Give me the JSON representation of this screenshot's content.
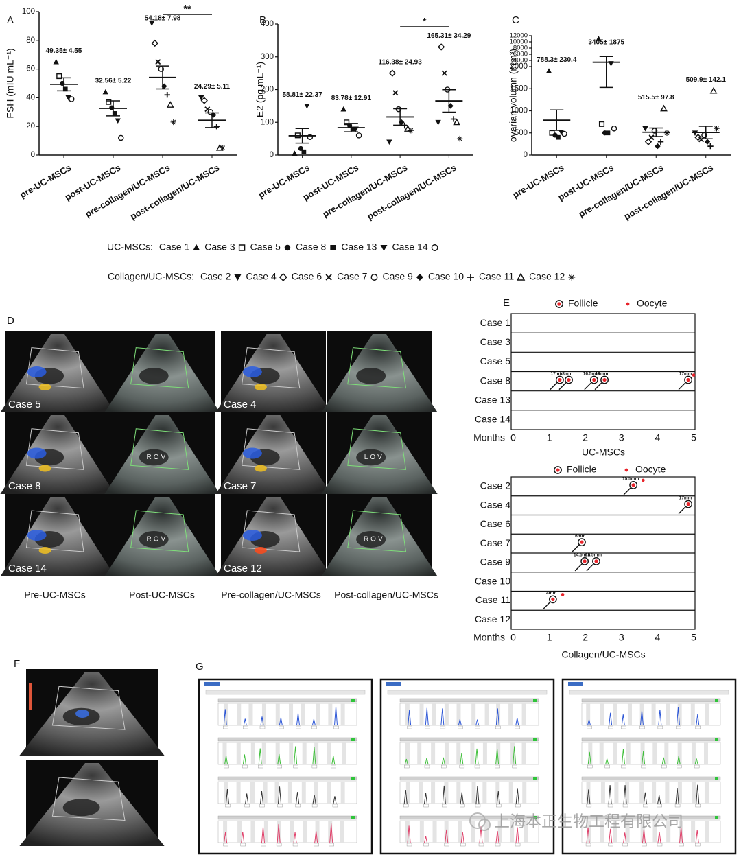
{
  "chart_data": [
    {
      "type": "dotplot",
      "panel": "A",
      "ylabel": "FSH (mIU mL⁻¹)",
      "categories": [
        "pre-UC-MSCs",
        "post-UC-MSCs",
        "pre-collagen/UC-MSCs",
        "post-collagen/UC-MSCs"
      ],
      "points": [
        [
          65,
          55,
          50,
          46,
          40,
          39
        ],
        [
          44,
          37,
          33,
          29,
          24,
          12
        ],
        [
          92,
          78,
          65,
          60,
          48,
          42,
          35,
          23
        ],
        [
          40,
          38,
          32,
          30,
          28,
          20,
          5,
          5
        ]
      ],
      "values": [
        49.35,
        32.56,
        54.18,
        24.29
      ],
      "errors": [
        4.55,
        5.22,
        7.98,
        5.11
      ],
      "value_labels": [
        "49.35± 4.55",
        "32.56± 5.22",
        "54.18± 7.98",
        "24.29± 5.11"
      ],
      "significance": "**",
      "ylim": [
        0,
        100
      ],
      "yticks": [
        0,
        20,
        40,
        60,
        80,
        100
      ]
    },
    {
      "type": "dotplot",
      "panel": "B",
      "ylabel": "E2 (pg mL⁻¹)",
      "categories": [
        "pre-UC-MSCs",
        "post-UC-MSCs",
        "pre-collagen/UC-MSCs",
        "post-collagen/UC-MSCs"
      ],
      "points": [
        [
          5,
          60,
          20,
          10,
          150,
          55
        ],
        [
          140,
          100,
          90,
          80,
          80,
          60
        ],
        [
          40,
          250,
          190,
          140,
          100,
          90,
          80,
          75
        ],
        [
          100,
          330,
          250,
          200,
          150,
          110,
          100,
          50
        ]
      ],
      "values": [
        58.81,
        83.78,
        116.38,
        165.31
      ],
      "errors": [
        22.37,
        12.91,
        24.93,
        34.29
      ],
      "value_labels": [
        "58.81± 22.37",
        "83.78± 12.91",
        "116.38± 24.93",
        "165.31± 34.29"
      ],
      "significance": "*",
      "ylim": [
        0,
        400
      ],
      "yticks": [
        0,
        100,
        200,
        300,
        400
      ]
    },
    {
      "type": "dotplot",
      "panel": "C",
      "ylabel": "ovarian volumn (mm³)",
      "categories": [
        "pre-UC-MSCs",
        "post-UC-MSCs",
        "pre-collagen/UC-MSCs",
        "post-collagen/UC-MSCs"
      ],
      "points": [
        [
          1900,
          500,
          450,
          400,
          520,
          480
        ],
        [
          11000,
          700,
          500,
          500,
          3000,
          600
        ],
        [
          600,
          300,
          400,
          550,
          200,
          300,
          1050,
          500
        ],
        [
          500,
          400,
          350,
          450,
          300,
          200,
          1450,
          600
        ]
      ],
      "values": [
        788.3,
        3405,
        515.5,
        509.9
      ],
      "errors": [
        230.4,
        1875,
        97.8,
        142.1
      ],
      "value_labels": [
        "788.3± 230.4",
        "3405± 1875",
        "515.5± 97.8",
        "509.9± 142.1"
      ],
      "ylim": [
        0,
        12000
      ],
      "y_break": 2000,
      "yticks": [
        0,
        500,
        1000,
        1500,
        2000,
        4000,
        6000,
        8000,
        10000,
        12000
      ]
    },
    {
      "type": "timeline",
      "panel": "E",
      "title": "UC-MSCs",
      "axis_label": "Months",
      "legend": [
        "Follicle",
        "Oocyte"
      ],
      "xlim": [
        0,
        5
      ],
      "xticks": [
        0,
        1,
        2,
        3,
        4,
        5
      ],
      "series": [
        {
          "name": "Case 1",
          "x": [],
          "size_labels": [],
          "oocyte_x": []
        },
        {
          "name": "Case 3",
          "x": [],
          "size_labels": [],
          "oocyte_x": []
        },
        {
          "name": "Case 5",
          "x": [],
          "size_labels": [],
          "oocyte_x": []
        },
        {
          "name": "Case 8",
          "x": [
            1.29,
            1.54,
            2.24,
            2.53,
            4.85
          ],
          "size_labels": [
            "17mm",
            "18mm",
            "16.5mm",
            "19mm",
            "17mm"
          ],
          "oocyte_x": [
            5.0
          ]
        },
        {
          "name": "Case 13",
          "x": [],
          "size_labels": [],
          "oocyte_x": []
        },
        {
          "name": "Case 14",
          "x": [],
          "size_labels": [],
          "oocyte_x": []
        }
      ]
    },
    {
      "type": "timeline",
      "title": "Collagen/UC-MSCs",
      "axis_label": "Months",
      "legend": [
        "Follicle",
        "Oocyte"
      ],
      "xlim": [
        0,
        5
      ],
      "xticks": [
        0,
        1,
        2,
        3,
        4,
        5
      ],
      "series": [
        {
          "name": "Case 2",
          "x": [
            3.33
          ],
          "size_labels": [
            "15.5mm"
          ],
          "oocyte_x": [
            3.6
          ]
        },
        {
          "name": "Case 4",
          "x": [
            4.85
          ],
          "size_labels": [
            "17mm"
          ],
          "oocyte_x": []
        },
        {
          "name": "Case 6",
          "x": [],
          "size_labels": [],
          "oocyte_x": []
        },
        {
          "name": "Case 7",
          "x": [
            1.9
          ],
          "size_labels": [
            "16mm"
          ],
          "oocyte_x": []
        },
        {
          "name": "Case 9",
          "x": [
            1.98,
            2.3
          ],
          "size_labels": [
            "14.5mm",
            "13.5mm"
          ],
          "oocyte_x": []
        },
        {
          "name": "Case 10",
          "x": [],
          "size_labels": [],
          "oocyte_x": []
        },
        {
          "name": "Case 11",
          "x": [
            1.1
          ],
          "size_labels": [
            "14mm"
          ],
          "oocyte_x": [
            1.37
          ]
        },
        {
          "name": "Case 12",
          "x": [],
          "size_labels": [],
          "oocyte_x": []
        }
      ]
    }
  ],
  "legend": {
    "uc_label": "UC-MSCs:",
    "uc_cases": [
      "Case 1",
      "Case 3",
      "Case 5",
      "Case 8",
      "Case 13",
      "Case 14"
    ],
    "collagen_label": "Collagen/UC-MSCs:",
    "collagen_cases": [
      "Case 2",
      "Case 4",
      "Case 6",
      "Case 7",
      "Case 9",
      "Case 10",
      "Case 11",
      "Case 12"
    ]
  },
  "panel_d": {
    "label": "D",
    "cases": [
      "Case 5",
      "Case 4",
      "Case 8",
      "Case 7",
      "Case 14",
      "Case 12"
    ],
    "columns": [
      "Pre-UC-MSCs",
      "Post-UC-MSCs",
      "Pre-collagen/UC-MSCs",
      "Post-collagen/UC-MSCs"
    ],
    "image_tags": [
      "ROV",
      "LOV",
      "ROV",
      "ROV"
    ]
  },
  "panel_f": {
    "label": "F"
  },
  "panel_g": {
    "label": "G"
  },
  "watermark": "上海本正生物工程有限公司"
}
